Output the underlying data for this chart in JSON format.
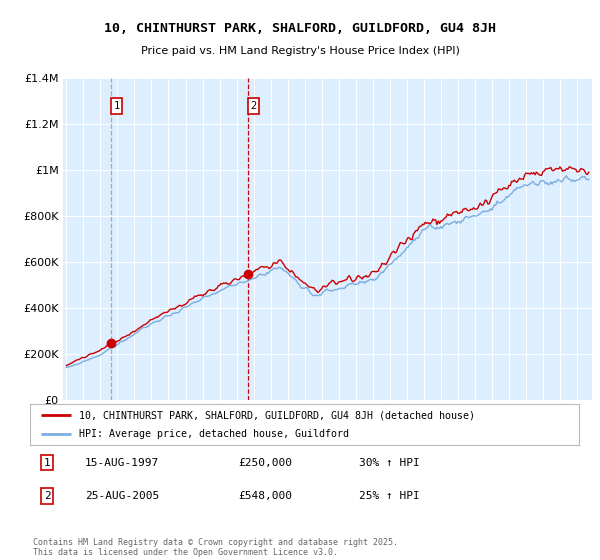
{
  "title_line1": "10, CHINTHURST PARK, SHALFORD, GUILDFORD, GU4 8JH",
  "title_line2": "Price paid vs. HM Land Registry's House Price Index (HPI)",
  "legend_label1": "10, CHINTHURST PARK, SHALFORD, GUILDFORD, GU4 8JH (detached house)",
  "legend_label2": "HPI: Average price, detached house, Guildford",
  "sale1_label": "1",
  "sale1_date": "15-AUG-1997",
  "sale1_price": "£250,000",
  "sale1_hpi": "30% ↑ HPI",
  "sale2_label": "2",
  "sale2_date": "25-AUG-2005",
  "sale2_price": "£548,000",
  "sale2_hpi": "25% ↑ HPI",
  "footer": "Contains HM Land Registry data © Crown copyright and database right 2025.\nThis data is licensed under the Open Government Licence v3.0.",
  "red_color": "#cc0000",
  "blue_color": "#7aade0",
  "bg_color": "#ddeeff",
  "grid_color": "#ffffff",
  "sale1_x": 1997.62,
  "sale2_x": 2005.65,
  "sale1_price_val": 250000,
  "sale2_price_val": 548000,
  "ylim_min": 0,
  "ylim_max": 1400000,
  "xmin": 1994.8,
  "xmax": 2025.9
}
